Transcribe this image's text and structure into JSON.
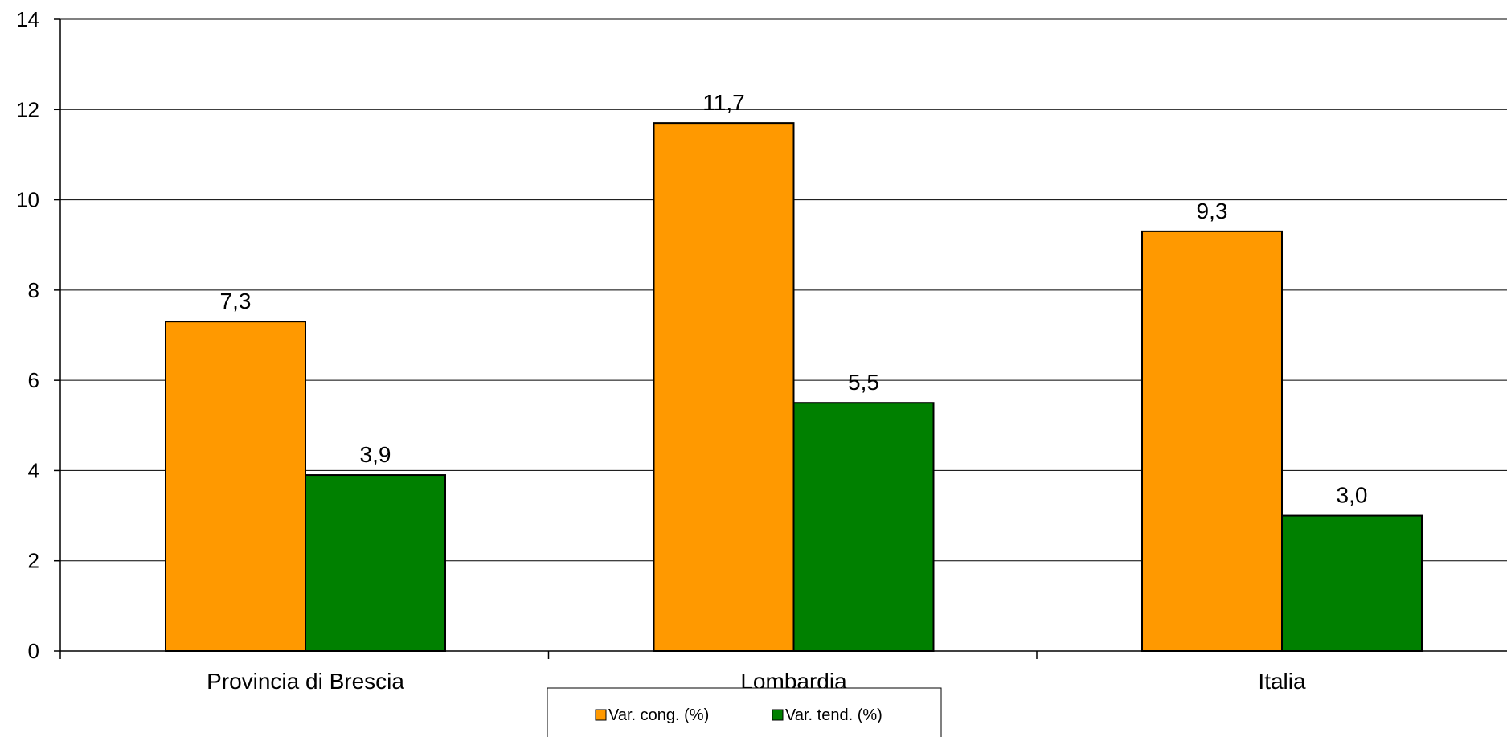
{
  "chart_data": {
    "type": "bar",
    "categories": [
      "Provincia di Brescia",
      "Lombardia",
      "Italia"
    ],
    "series": [
      {
        "name": "Var. cong. (%)",
        "values": [
          7.3,
          11.7,
          9.3
        ],
        "labels": [
          "7,3",
          "11,7",
          "9,3"
        ],
        "color": "#FF9900"
      },
      {
        "name": "Var. tend. (%)",
        "values": [
          3.9,
          5.5,
          3.0
        ],
        "labels": [
          "3,9",
          "5,5",
          "3,0"
        ],
        "color": "#008000"
      }
    ],
    "title": "",
    "xlabel": "",
    "ylabel": "",
    "ylim": [
      0,
      14
    ],
    "yticks": [
      0,
      2,
      4,
      6,
      8,
      10,
      12,
      14
    ],
    "ytick_labels": [
      "0",
      "2",
      "4",
      "6",
      "8",
      "10",
      "12",
      "14"
    ],
    "grid": true,
    "legend_position": "bottom-center"
  }
}
